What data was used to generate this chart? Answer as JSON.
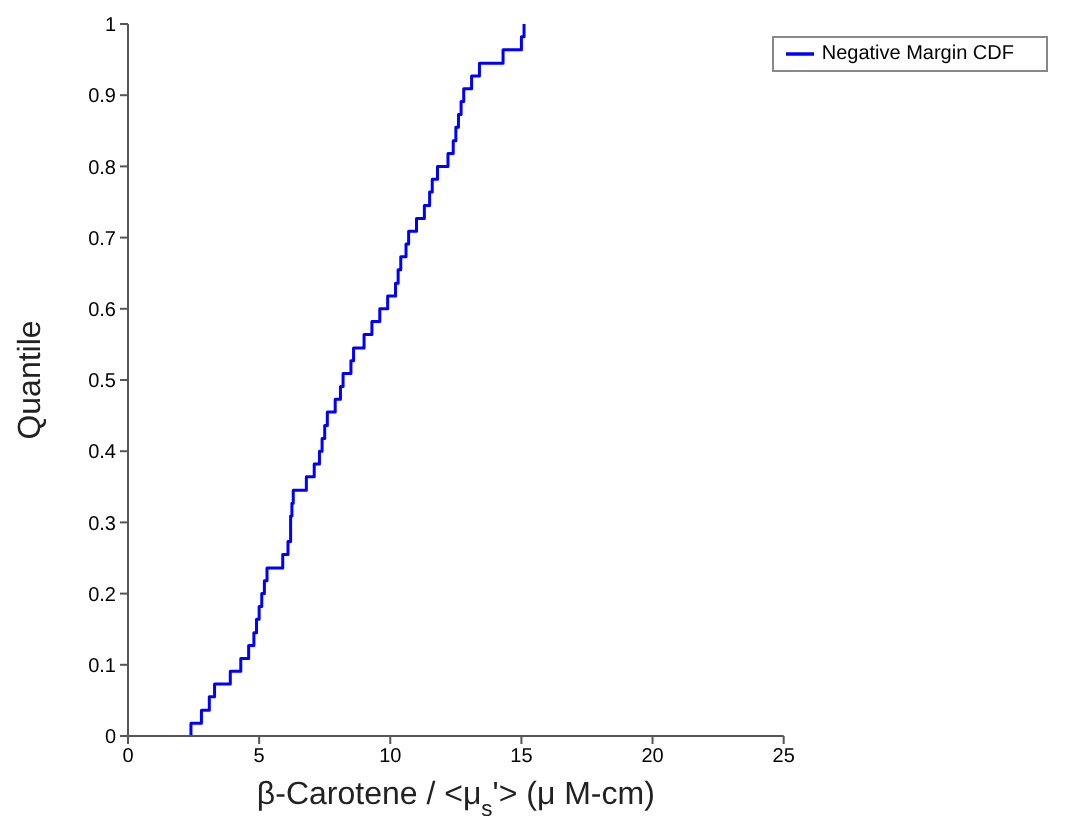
{
  "chart_data": {
    "type": "step",
    "xlabel": "β-Carotene / <μ$_{s}$'> (μ M-cm)",
    "ylabel": "Quantile",
    "x": [
      2.4,
      2.4,
      2.8,
      3.1,
      3.3,
      3.9,
      4.3,
      4.6,
      4.8,
      4.9,
      5.0,
      5.1,
      5.2,
      5.3,
      5.9,
      6.1,
      6.2,
      6.25,
      6.3,
      6.8,
      7.1,
      7.3,
      7.4,
      7.5,
      7.6,
      7.9,
      8.1,
      8.2,
      8.5,
      8.6,
      9.0,
      9.3,
      9.6,
      9.9,
      10.2,
      10.3,
      10.4,
      10.6,
      10.7,
      11.0,
      11.3,
      11.5,
      11.6,
      11.8,
      12.2,
      12.4,
      12.5,
      12.6,
      12.7,
      12.8,
      13.1,
      13.4,
      14.3,
      15.0,
      15.1
    ],
    "series": [
      {
        "name": "Negative Margin CDF",
        "color": "#0000ff",
        "values": [
          0,
          0.018,
          0.036,
          0.055,
          0.073,
          0.091,
          0.109,
          0.127,
          0.145,
          0.164,
          0.182,
          0.2,
          0.218,
          0.236,
          0.255,
          0.273,
          0.309,
          0.327,
          0.345,
          0.364,
          0.382,
          0.4,
          0.418,
          0.436,
          0.455,
          0.473,
          0.491,
          0.509,
          0.527,
          0.545,
          0.564,
          0.582,
          0.6,
          0.618,
          0.636,
          0.655,
          0.673,
          0.691,
          0.709,
          0.727,
          0.745,
          0.764,
          0.782,
          0.8,
          0.818,
          0.836,
          0.855,
          0.873,
          0.891,
          0.909,
          0.927,
          0.945,
          0.964,
          0.982,
          1.0
        ]
      }
    ],
    "xlim": [
      0,
      25
    ],
    "xticks": [
      0,
      5,
      10,
      15,
      20,
      25
    ],
    "ylim": [
      0,
      1
    ],
    "yticks": [
      0,
      0.1,
      0.2,
      0.3,
      0.4,
      0.5,
      0.6,
      0.7,
      0.8,
      0.9,
      1
    ],
    "legend": "top right",
    "grid": false,
    "marker": "none",
    "line_style": "solid"
  }
}
